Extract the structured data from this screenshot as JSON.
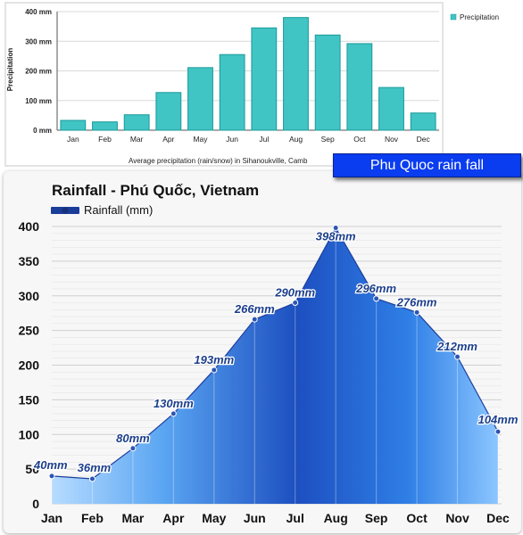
{
  "chart_data": [
    {
      "type": "bar",
      "title": "",
      "xlabel": "Average precipitation (rain/snow) in Sihanoukville, Camb",
      "ylabel": "Precipitation",
      "ylim": [
        0,
        400
      ],
      "yticks": [
        "0 mm",
        "100 mm",
        "200 mm",
        "300 mm",
        "400 mm"
      ],
      "categories": [
        "Jan",
        "Feb",
        "Mar",
        "Apr",
        "May",
        "Jun",
        "Jul",
        "Aug",
        "Sep",
        "Oct",
        "Nov",
        "Dec"
      ],
      "series": [
        {
          "name": "Precipitation",
          "values": [
            33,
            28,
            52,
            127,
            211,
            255,
            345,
            380,
            321,
            292,
            144,
            58
          ]
        }
      ],
      "legend": "top-right",
      "grid": true,
      "colors": {
        "bar": "#40c4c4",
        "bar_edge": "#1a9a9a"
      }
    },
    {
      "type": "area",
      "title": "Rainfall - Phú Quốc, Vietnam",
      "xlabel": "",
      "ylabel": "",
      "ylim": [
        0,
        400
      ],
      "yticks": [
        "0",
        "50",
        "100",
        "150",
        "200",
        "250",
        "300",
        "350",
        "400"
      ],
      "categories": [
        "Jan",
        "Feb",
        "Mar",
        "Apr",
        "May",
        "Jun",
        "Jul",
        "Aug",
        "Sep",
        "Oct",
        "Nov",
        "Dec"
      ],
      "series": [
        {
          "name": "Rainfall (mm)",
          "values": [
            40,
            36,
            80,
            130,
            193,
            266,
            290,
            398,
            296,
            276,
            212,
            104
          ]
        }
      ],
      "data_labels": [
        "40mm",
        "36mm",
        "80mm",
        "130mm",
        "193mm",
        "266mm",
        "290mm",
        "398mm",
        "296mm",
        "276mm",
        "212mm",
        "104mm"
      ],
      "legend": "top-left",
      "grid": true,
      "colors": {
        "fill_light": "#9fd0ff",
        "fill_mid": "#2d7fe6",
        "fill_dark": "#1b49b8",
        "label": "#1c3f8c",
        "marker": "#2c55b3"
      }
    }
  ],
  "badge": {
    "text": "Phu Quoc rain fall",
    "color": "#0a3cf0"
  }
}
